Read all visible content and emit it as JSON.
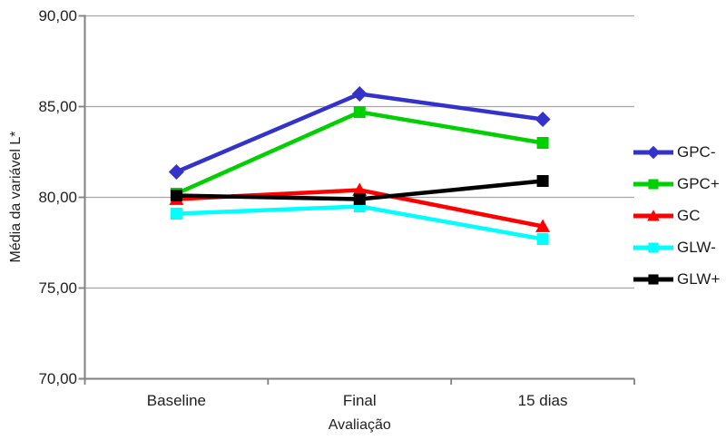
{
  "chart_data": {
    "type": "line",
    "title": "",
    "xlabel": "Avaliação",
    "ylabel": "Média da variável L*",
    "categories": [
      "Baseline",
      "Final",
      "15 dias"
    ],
    "ylim": [
      70,
      90
    ],
    "ytick_interval": 5,
    "yticks": [
      {
        "value": 90,
        "label": "90,00"
      },
      {
        "value": 85,
        "label": "85,00"
      },
      {
        "value": 80,
        "label": "80,00"
      },
      {
        "value": 75,
        "label": "75,00"
      },
      {
        "value": 70,
        "label": "70,00"
      }
    ],
    "grid": "horizontal",
    "legend_position": "right",
    "series": [
      {
        "name": "GPC-",
        "color": "#3333CC",
        "marker": "diamond",
        "values": [
          81.4,
          85.7,
          84.3
        ]
      },
      {
        "name": "GPC+",
        "color": "#00D000",
        "marker": "square",
        "values": [
          80.2,
          84.7,
          83.0
        ]
      },
      {
        "name": "GC",
        "color": "#FF0000",
        "marker": "triangle",
        "values": [
          79.9,
          80.4,
          78.4
        ]
      },
      {
        "name": "GLW-",
        "color": "#00FFFF",
        "marker": "square",
        "values": [
          79.1,
          79.5,
          77.7
        ]
      },
      {
        "name": "GLW+",
        "color": "#000000",
        "marker": "square",
        "values": [
          80.1,
          79.9,
          80.9
        ]
      }
    ]
  },
  "colors": {
    "background": "#FFFFFF",
    "gridline": "#A6A6A6",
    "axis": "#808080",
    "text": "#1F1F1F"
  }
}
